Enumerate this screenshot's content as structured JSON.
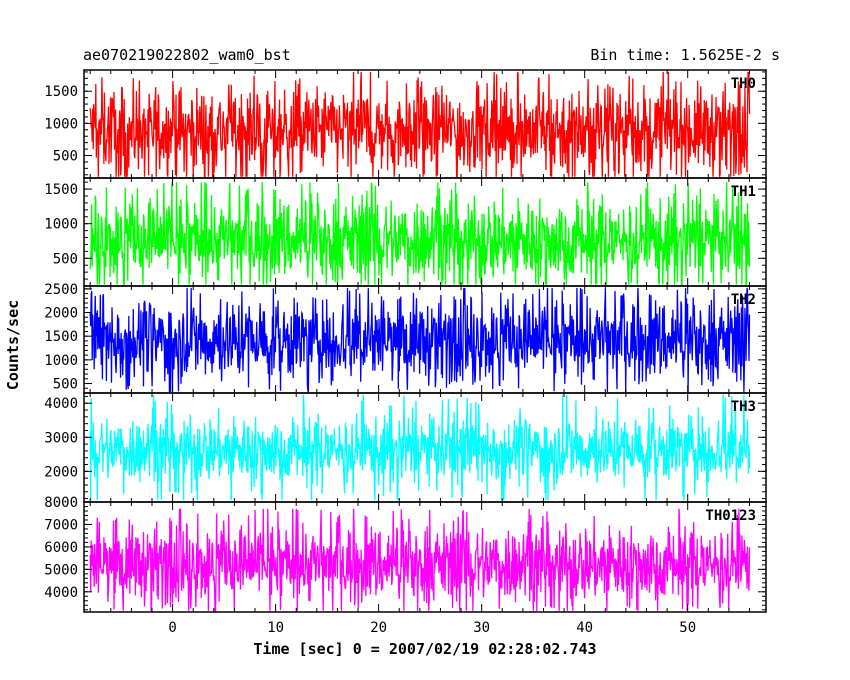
{
  "chart_data": {
    "type": "line",
    "title": "ae070219022802_wam0_bst",
    "subtitle": "Bin time: 1.5625E-2 s",
    "xlabel": "Time [sec] 0 = 2007/02/19 02:28:02.743",
    "ylabel": "Counts/sec",
    "xlim": [
      -8.6,
      57.6
    ],
    "x_ticks": [
      0,
      10,
      20,
      30,
      40,
      50
    ],
    "data_range": [
      -8.0,
      56.0
    ],
    "grid": false,
    "panels": [
      {
        "name": "TH0",
        "color": "#ff0000",
        "ylim": [
          150,
          1830
        ],
        "y_ticks": [
          500,
          1000,
          1500
        ],
        "baseline": 900,
        "spread": 330,
        "y_min": 170,
        "y_max": 1800
      },
      {
        "name": "TH1",
        "color": "#00ff00",
        "ylim": [
          100,
          1660
        ],
        "y_ticks": [
          500,
          1000,
          1500
        ],
        "baseline": 770,
        "spread": 300,
        "y_min": 120,
        "y_max": 1600
      },
      {
        "name": "TH2",
        "color": "#0000ff",
        "ylim": [
          300,
          2560
        ],
        "y_ticks": [
          500,
          1000,
          1500,
          2000,
          2500
        ],
        "baseline": 1420,
        "spread": 430,
        "y_min": 320,
        "y_max": 2520
      },
      {
        "name": "TH3",
        "color": "#00ffff",
        "ylim": [
          1100,
          4300
        ],
        "y_ticks": [
          2000,
          3000,
          4000
        ],
        "baseline": 2650,
        "spread": 480,
        "y_min": 1150,
        "y_max": 4250
      },
      {
        "name": "TH0123",
        "color": "#ff00ff",
        "ylim": [
          3100,
          8000
        ],
        "y_ticks": [
          4000,
          5000,
          6000,
          7000,
          8000
        ],
        "baseline": 5250,
        "spread": 850,
        "y_min": 3150,
        "y_max": 7700
      }
    ]
  }
}
